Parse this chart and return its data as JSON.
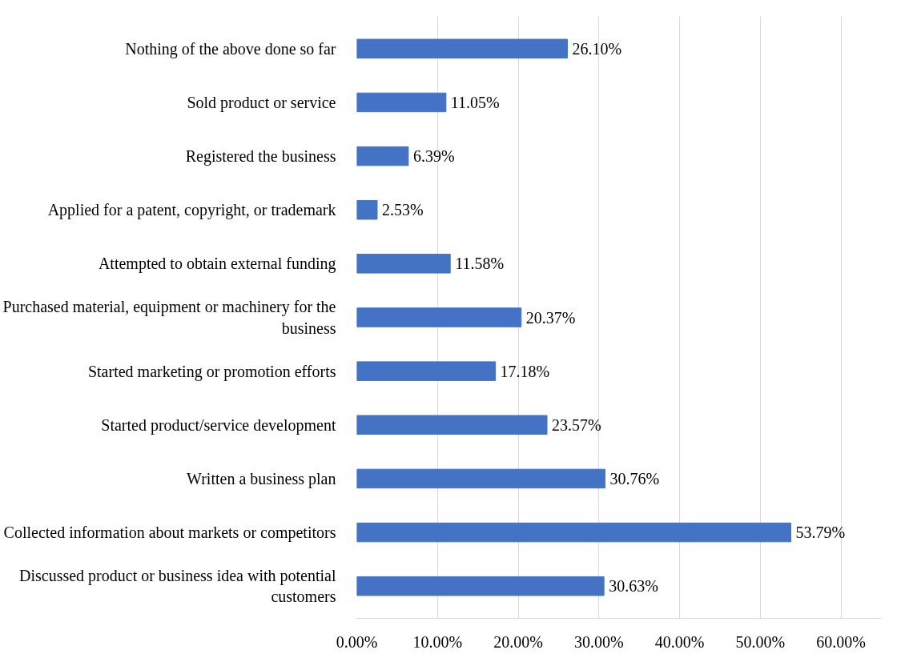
{
  "chart_data": {
    "type": "bar",
    "orientation": "horizontal",
    "categories": [
      "Nothing of the above done so far",
      "Sold product or service",
      "Registered the business",
      "Applied for a patent, copyright, or trademark",
      "Attempted to obtain external funding",
      "Purchased material, equipment or machinery for the business",
      "Started marketing or promotion efforts",
      "Started product/service development",
      "Written a business plan",
      "Collected information about markets or competitors",
      "Discussed product or business idea with potential customers"
    ],
    "values": [
      26.1,
      11.05,
      6.39,
      2.53,
      11.58,
      20.37,
      17.18,
      23.57,
      30.76,
      53.79,
      30.63
    ],
    "value_labels": [
      "26.10%",
      "11.05%",
      "6.39%",
      "2.53%",
      "11.58%",
      "20.37%",
      "17.18%",
      "23.57%",
      "30.76%",
      "53.79%",
      "30.63%"
    ],
    "color": "#4472c4",
    "xlim": [
      0,
      65
    ],
    "xticks": [
      {
        "value": 0,
        "label": "0.00%"
      },
      {
        "value": 10,
        "label": "10.00%"
      },
      {
        "value": 20,
        "label": "20.00%"
      },
      {
        "value": 30,
        "label": "30.00%"
      },
      {
        "value": 40,
        "label": "40.00%"
      },
      {
        "value": 50,
        "label": "50.00%"
      },
      {
        "value": 60,
        "label": "60.00%"
      }
    ],
    "grid": "x"
  }
}
